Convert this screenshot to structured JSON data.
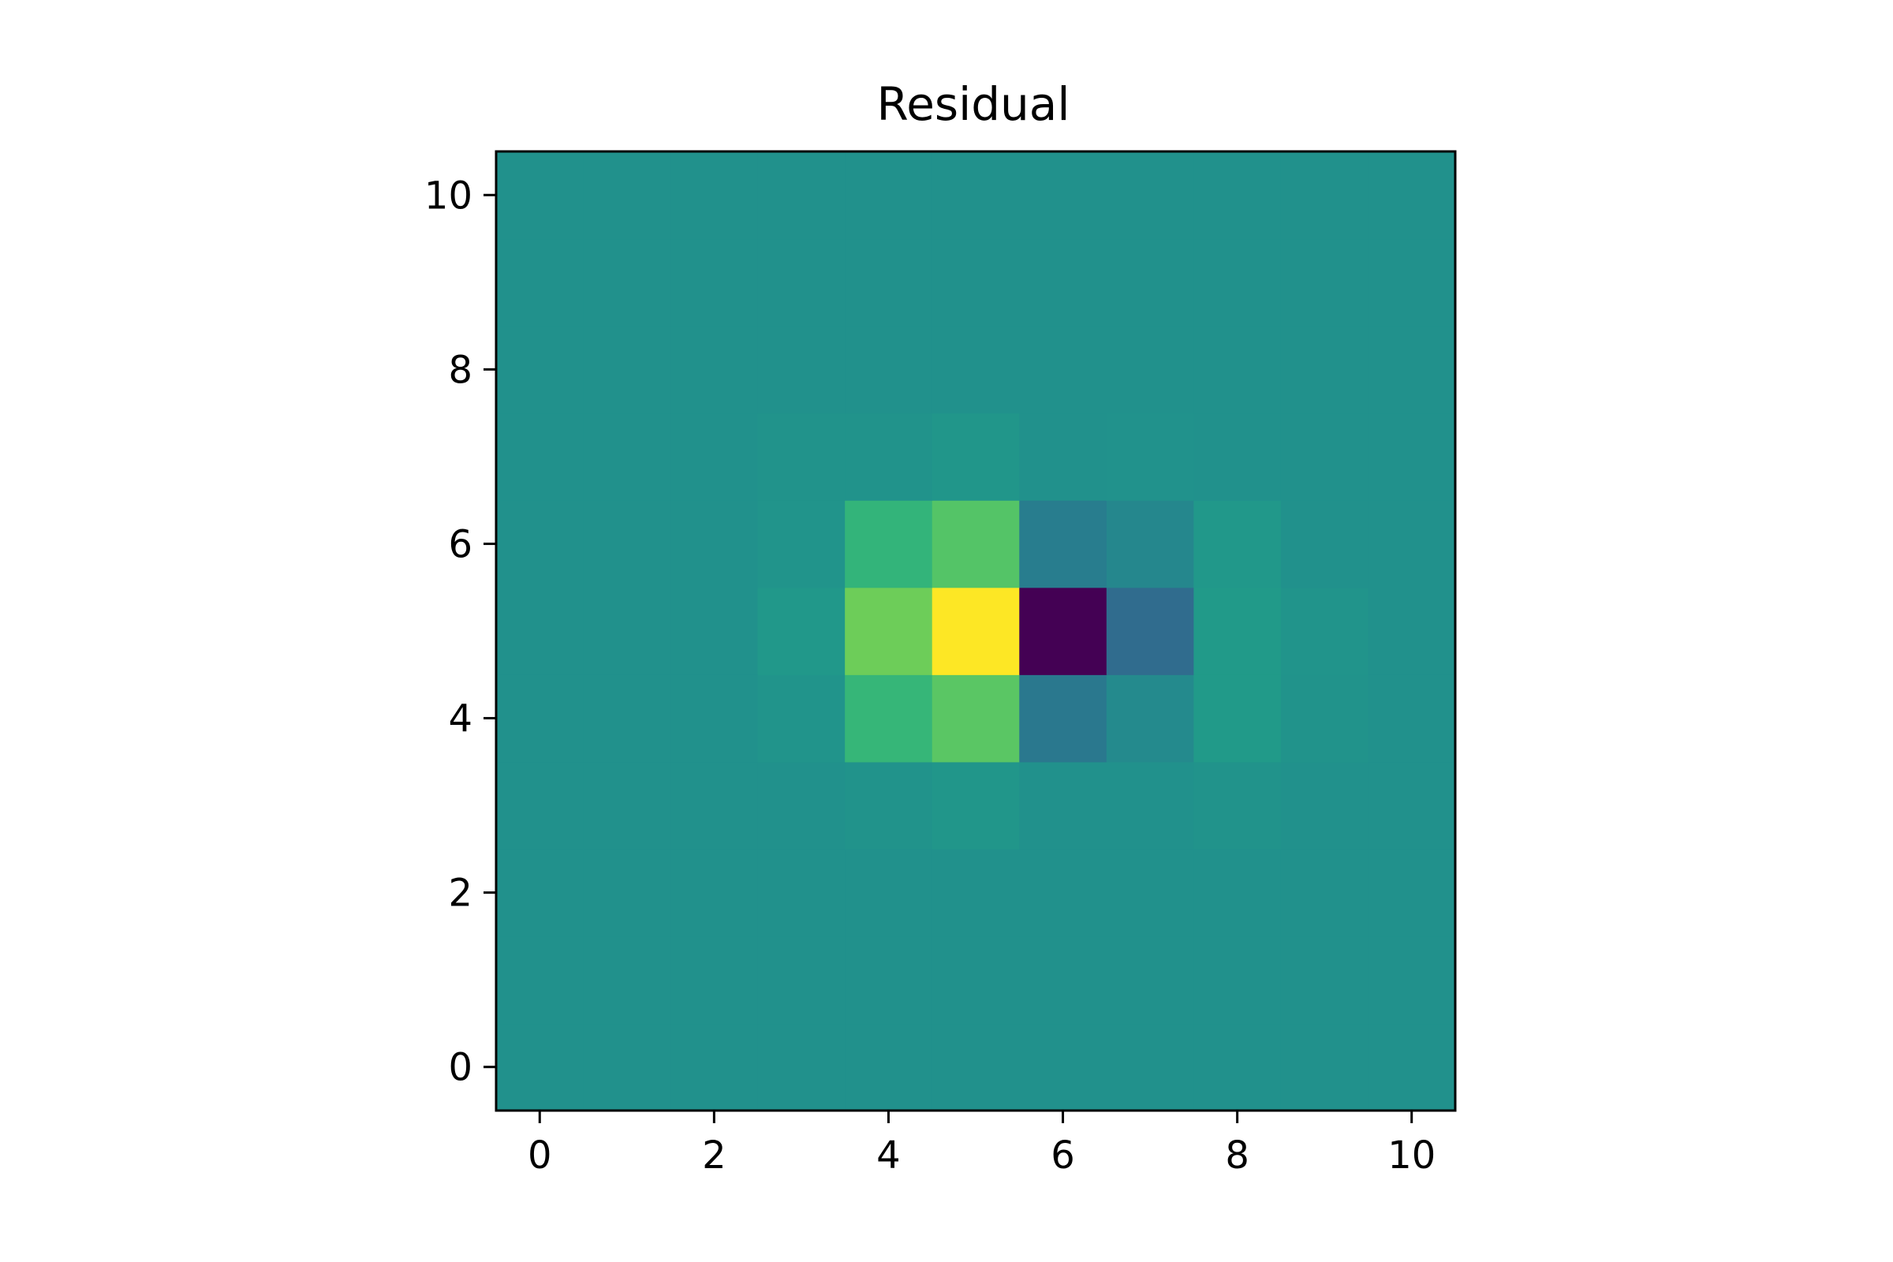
{
  "chart_data": {
    "type": "heatmap",
    "title": "Residual",
    "xlabel": "",
    "ylabel": "",
    "colormap": "viridis",
    "xlim": [
      -0.5,
      10.5
    ],
    "ylim": [
      -0.5,
      10.5
    ],
    "origin": "lower",
    "grid": false,
    "x_ticks": [
      0,
      2,
      4,
      6,
      8,
      10
    ],
    "y_ticks": [
      0,
      2,
      4,
      6,
      8,
      10
    ],
    "x_tick_labels": [
      "0",
      "2",
      "4",
      "6",
      "8",
      "10"
    ],
    "y_tick_labels": [
      "0",
      "2",
      "4",
      "6",
      "8",
      "10"
    ],
    "value_range": [
      -1.0,
      1.0
    ],
    "rows_bottom_to_top": [
      [
        0,
        0,
        0,
        0,
        0,
        0,
        0,
        0,
        0,
        0,
        0
      ],
      [
        0,
        0,
        0,
        0,
        0,
        0,
        0,
        0,
        0,
        0,
        0
      ],
      [
        0,
        0,
        0,
        0,
        0,
        0.002,
        0,
        0,
        0,
        0,
        0
      ],
      [
        0,
        0,
        0,
        0,
        0.02,
        0.04,
        0.0,
        0.0,
        0.02,
        0,
        0
      ],
      [
        0,
        0,
        0,
        0.03,
        0.32,
        0.48,
        -0.2,
        -0.06,
        0.08,
        0.02,
        0
      ],
      [
        0,
        0,
        0,
        0.06,
        0.55,
        1.0,
        -1.0,
        -0.3,
        0.08,
        0.03,
        0
      ],
      [
        0,
        0,
        0,
        0.03,
        0.3,
        0.46,
        -0.16,
        -0.08,
        0.06,
        0,
        0
      ],
      [
        0,
        0,
        0,
        0.02,
        0.02,
        0.04,
        0,
        0.01,
        0,
        0,
        0
      ],
      [
        0,
        0,
        0,
        0,
        0,
        0,
        0,
        0,
        0,
        0,
        0
      ],
      [
        0,
        0,
        0,
        0,
        0,
        0,
        0,
        0,
        0,
        0,
        0
      ],
      [
        0,
        0,
        0,
        0,
        0,
        0,
        0,
        0,
        0,
        0,
        0
      ]
    ]
  }
}
